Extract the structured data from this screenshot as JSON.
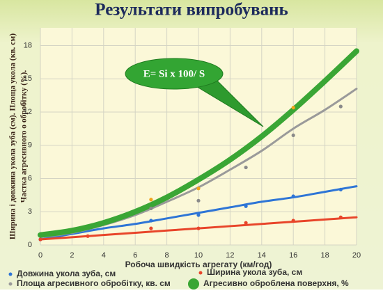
{
  "chart_data": {
    "type": "scatter-trend",
    "title": "Результати випробувань",
    "xlabel": "Робоча швидкість агрегату (км/год)",
    "ylabel": [
      "Ширина і довжина укола зуба  (см). Площа укола (кв. см)",
      "Частка агресивного о обробітку (%)."
    ],
    "annotation": "E= Si x 100/ S",
    "xlim": [
      0,
      20
    ],
    "xticks": [
      0,
      2,
      4,
      6,
      8,
      10,
      12,
      14,
      16,
      18,
      20
    ],
    "ylim": [
      0,
      19.6
    ],
    "yticks": [
      0,
      3,
      6,
      9,
      12,
      15,
      18
    ],
    "grid": true,
    "trend_x": [
      0,
      2,
      4,
      6,
      8,
      10,
      12,
      14,
      16,
      18,
      20
    ],
    "series": [
      {
        "name": "Довжина укола зуба, см",
        "color": "#2e75d6",
        "marker_color": "#2e75d6",
        "width": 3,
        "x": [
          0,
          7,
          10,
          13,
          16,
          19
        ],
        "values": [
          0.5,
          2.2,
          2.7,
          3.5,
          4.4,
          5.0
        ],
        "trend": [
          0.5,
          1.0,
          1.5,
          1.9,
          2.4,
          2.9,
          3.4,
          3.9,
          4.3,
          4.8,
          5.3
        ]
      },
      {
        "name": "Ширина укола зуба, см",
        "color": "#e8452a",
        "marker_color": "#e8452a",
        "width": 3,
        "x": [
          0,
          3,
          7,
          10,
          13,
          16,
          19
        ],
        "values": [
          0.5,
          0.8,
          1.5,
          1.5,
          2.0,
          2.2,
          2.5
        ],
        "trend": [
          0.5,
          0.7,
          0.9,
          1.1,
          1.3,
          1.5,
          1.7,
          1.9,
          2.1,
          2.3,
          2.5
        ]
      },
      {
        "name": "Площа агресивного обробітку, кв. см",
        "color": "#9a9a9a",
        "marker_color": "#8a8a8a",
        "width": 3,
        "x": [
          7,
          10,
          13,
          16,
          19
        ],
        "values": [
          3.3,
          4.0,
          7.0,
          9.9,
          12.5
        ],
        "trend": [
          0.7,
          1.1,
          1.8,
          2.7,
          3.9,
          5.2,
          6.8,
          8.5,
          10.5,
          12.2,
          14.1
        ]
      },
      {
        "name": "Агресивно оброблена поверхня, %",
        "color": "#3aa635",
        "marker_color": "#f2a31b",
        "width": 8,
        "x": [
          7,
          10,
          16
        ],
        "values": [
          4.1,
          5.1,
          12.4
        ],
        "trend": [
          0.9,
          1.3,
          2.0,
          3.0,
          4.3,
          5.9,
          7.7,
          9.8,
          12.2,
          14.8,
          17.5
        ]
      }
    ]
  }
}
